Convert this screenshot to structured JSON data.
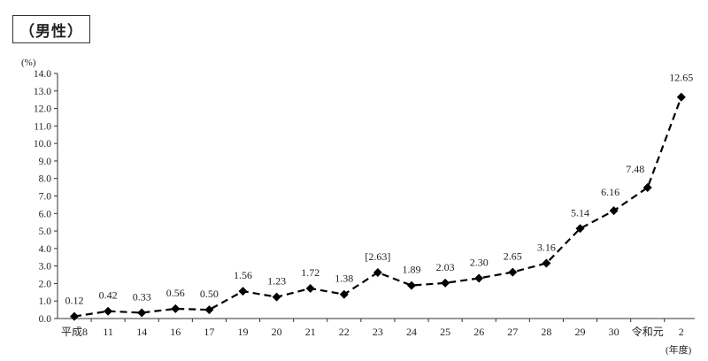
{
  "header": {
    "title": "（男性）"
  },
  "chart_data": {
    "type": "line",
    "title": "",
    "ylabel": "(%)",
    "xlabel": "(年度)",
    "ylim": [
      0,
      14
    ],
    "yticks": [
      "0.0",
      "1.0",
      "2.0",
      "3.0",
      "4.0",
      "5.0",
      "6.0",
      "7.0",
      "8.0",
      "9.0",
      "10.0",
      "11.0",
      "12.0",
      "13.0",
      "14.0"
    ],
    "categories": [
      "平成8",
      "11",
      "14",
      "16",
      "17",
      "19",
      "20",
      "21",
      "22",
      "23",
      "24",
      "25",
      "26",
      "27",
      "28",
      "29",
      "30",
      "令和元",
      "2"
    ],
    "series": [
      {
        "values": [
          0.12,
          0.42,
          0.33,
          0.56,
          0.5,
          1.56,
          1.23,
          1.72,
          1.38,
          2.63,
          1.89,
          2.03,
          2.3,
          2.65,
          3.16,
          5.14,
          6.16,
          7.48,
          12.65
        ],
        "labels": [
          "0.12",
          "0.42",
          "0.33",
          "0.56",
          "0.50",
          "1.56",
          "1.23",
          "1.72",
          "1.38",
          "[2.63]",
          "1.89",
          "2.03",
          "2.30",
          "2.65",
          "3.16",
          "5.14",
          "6.16",
          "7.48",
          "12.65"
        ],
        "line_style": "dashed",
        "marker": "diamond",
        "color": "#000000"
      }
    ],
    "grid": false
  }
}
